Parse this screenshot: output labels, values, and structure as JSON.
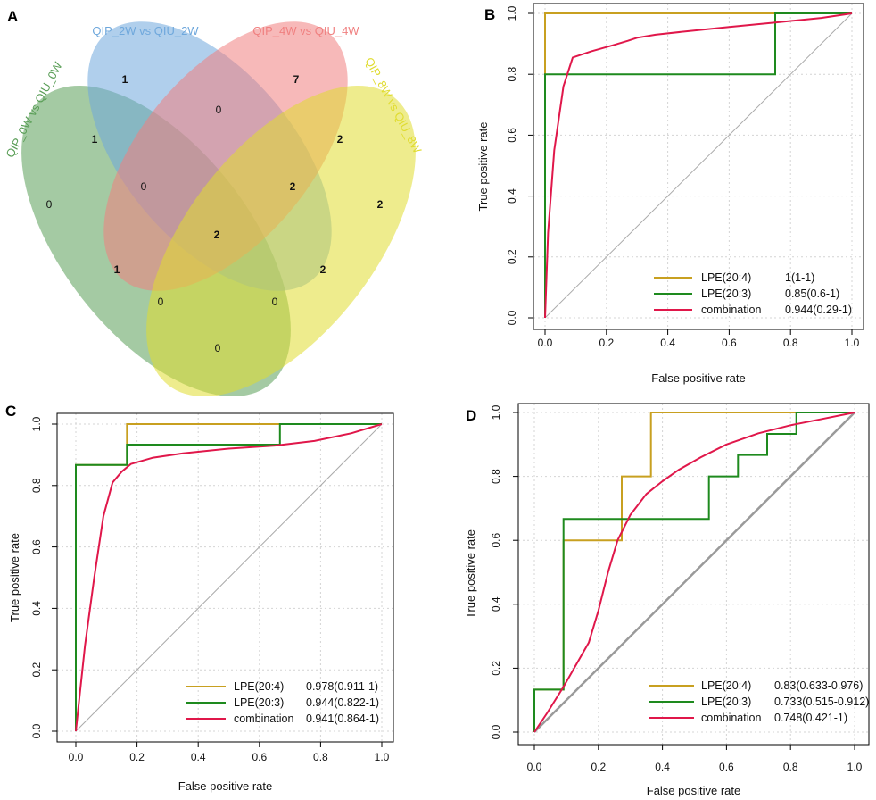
{
  "chart_data": [
    {
      "panel": "A",
      "type": "venn",
      "sets": [
        {
          "name": "QIP_0W vs QIU_0W",
          "color": "#5a9e57"
        },
        {
          "name": "QIP_2W vs QIU_2W",
          "color": "#6fa8dc"
        },
        {
          "name": "QIP_4W vs QIU_4W",
          "color": "#f08080"
        },
        {
          "name": "QIP_8W vs QIU_8W",
          "color": "#e0dc30"
        }
      ],
      "regions": [
        {
          "sets": [
            "2W"
          ],
          "value": "1"
        },
        {
          "sets": [
            "4W"
          ],
          "value": "7"
        },
        {
          "sets": [
            "2W",
            "4W"
          ],
          "value": "0"
        },
        {
          "sets": [
            "0W",
            "2W"
          ],
          "value": "1"
        },
        {
          "sets": [
            "4W",
            "8W"
          ],
          "value": "2"
        },
        {
          "sets": [
            "0W",
            "2W",
            "4W"
          ],
          "value": "0"
        },
        {
          "sets": [
            "2W",
            "4W",
            "8W"
          ],
          "value": "2"
        },
        {
          "sets": [
            "0W"
          ],
          "value": "0"
        },
        {
          "sets": [
            "8W"
          ],
          "value": "2"
        },
        {
          "sets": [
            "0W",
            "2W",
            "4W",
            "8W"
          ],
          "value": "2"
        },
        {
          "sets": [
            "0W",
            "4W"
          ],
          "value": "1"
        },
        {
          "sets": [
            "2W",
            "8W"
          ],
          "value": "2"
        },
        {
          "sets": [
            "0W",
            "4W",
            "8W"
          ],
          "value": "0"
        },
        {
          "sets": [
            "0W",
            "2W",
            "8W"
          ],
          "value": "0"
        },
        {
          "sets": [
            "0W",
            "8W"
          ],
          "value": "0"
        }
      ]
    },
    {
      "panel": "B",
      "type": "line",
      "xlabel": "False positive rate",
      "ylabel": "True positive rate",
      "xlim": [
        0,
        1
      ],
      "ylim": [
        0,
        1
      ],
      "xticks": [
        "0.0",
        "0.2",
        "0.4",
        "0.6",
        "0.8",
        "1.0"
      ],
      "yticks": [
        "0.0",
        "0.2",
        "0.4",
        "0.6",
        "0.8",
        "1.0"
      ],
      "grid": true,
      "legend_position": "bottom-right",
      "series": [
        {
          "name": "LPE(20:4)",
          "auc": "1(1-1)",
          "color": "#c8a020",
          "x": [
            0,
            0,
            1
          ],
          "y": [
            0,
            1,
            1
          ]
        },
        {
          "name": "LPE(20:3)",
          "auc": "0.85(0.6-1)",
          "color": "#1e8a1e",
          "x": [
            0,
            0,
            0.75,
            0.75,
            1
          ],
          "y": [
            0,
            0.8,
            0.8,
            1,
            1
          ]
        },
        {
          "name": "combination",
          "auc": "0.944(0.29-1)",
          "color": "#e0174a",
          "x": [
            0,
            0.01,
            0.03,
            0.06,
            0.09,
            0.15,
            0.22,
            0.27,
            0.3,
            0.36,
            0.45,
            0.6,
            0.75,
            0.9,
            1.0
          ],
          "y": [
            0,
            0.28,
            0.55,
            0.76,
            0.855,
            0.875,
            0.895,
            0.91,
            0.92,
            0.93,
            0.94,
            0.955,
            0.97,
            0.985,
            1.0
          ]
        }
      ]
    },
    {
      "panel": "C",
      "type": "line",
      "xlabel": "False positive rate",
      "ylabel": "True positive rate",
      "xlim": [
        0,
        1
      ],
      "ylim": [
        0,
        1
      ],
      "xticks": [
        "0.0",
        "0.2",
        "0.4",
        "0.6",
        "0.8",
        "1.0"
      ],
      "yticks": [
        "0.0",
        "0.2",
        "0.4",
        "0.6",
        "0.8",
        "1.0"
      ],
      "grid": true,
      "legend_position": "bottom-right",
      "series": [
        {
          "name": "LPE(20:4)",
          "auc": "0.978(0.911-1)",
          "color": "#c8a020",
          "x": [
            0,
            0,
            0.167,
            0.167,
            1
          ],
          "y": [
            0,
            0.867,
            0.867,
            1,
            1
          ]
        },
        {
          "name": "LPE(20:3)",
          "auc": "0.944(0.822-1)",
          "color": "#1e8a1e",
          "x": [
            0,
            0,
            0.167,
            0.167,
            0.667,
            0.667,
            1
          ],
          "y": [
            0,
            0.867,
            0.867,
            0.933,
            0.933,
            1,
            1
          ]
        },
        {
          "name": "combination",
          "auc": "0.941(0.864-1)",
          "color": "#e0174a",
          "x": [
            0,
            0.03,
            0.06,
            0.09,
            0.12,
            0.15,
            0.18,
            0.25,
            0.35,
            0.5,
            0.65,
            0.78,
            0.9,
            1.0
          ],
          "y": [
            0,
            0.28,
            0.5,
            0.7,
            0.81,
            0.845,
            0.87,
            0.89,
            0.905,
            0.92,
            0.93,
            0.945,
            0.97,
            1.0
          ]
        }
      ]
    },
    {
      "panel": "D",
      "type": "line",
      "xlabel": "False positive rate",
      "ylabel": "True positive rate",
      "xlim": [
        0,
        1
      ],
      "ylim": [
        0,
        1
      ],
      "xticks": [
        "0.0",
        "0.2",
        "0.4",
        "0.6",
        "0.8",
        "1.0"
      ],
      "yticks": [
        "0.0",
        "0.2",
        "0.4",
        "0.6",
        "0.8",
        "1.0"
      ],
      "grid": true,
      "legend_position": "bottom-right",
      "series": [
        {
          "name": "LPE(20:4)",
          "auc": "0.83(0.633-0.976)",
          "color": "#c8a020",
          "x": [
            0,
            0,
            0.091,
            0.091,
            0.273,
            0.273,
            0.364,
            0.364,
            1
          ],
          "y": [
            0,
            0.133,
            0.133,
            0.6,
            0.6,
            0.8,
            0.8,
            1,
            1
          ]
        },
        {
          "name": "LPE(20:3)",
          "auc": "0.733(0.515-0.912)",
          "color": "#1e8a1e",
          "x": [
            0,
            0,
            0.091,
            0.091,
            0.545,
            0.545,
            0.636,
            0.636,
            0.727,
            0.727,
            0.818,
            0.818,
            1
          ],
          "y": [
            0,
            0.133,
            0.133,
            0.667,
            0.667,
            0.8,
            0.8,
            0.867,
            0.867,
            0.933,
            0.933,
            1,
            1
          ]
        },
        {
          "name": "combination",
          "auc": "0.748(0.421-1)",
          "color": "#e0174a",
          "x": [
            0,
            0.04,
            0.09,
            0.13,
            0.17,
            0.2,
            0.23,
            0.26,
            0.3,
            0.35,
            0.4,
            0.45,
            0.52,
            0.6,
            0.7,
            0.8,
            0.9,
            1.0
          ],
          "y": [
            0,
            0.06,
            0.14,
            0.21,
            0.28,
            0.38,
            0.5,
            0.6,
            0.68,
            0.745,
            0.785,
            0.82,
            0.86,
            0.9,
            0.935,
            0.96,
            0.98,
            1.0
          ]
        }
      ]
    }
  ]
}
